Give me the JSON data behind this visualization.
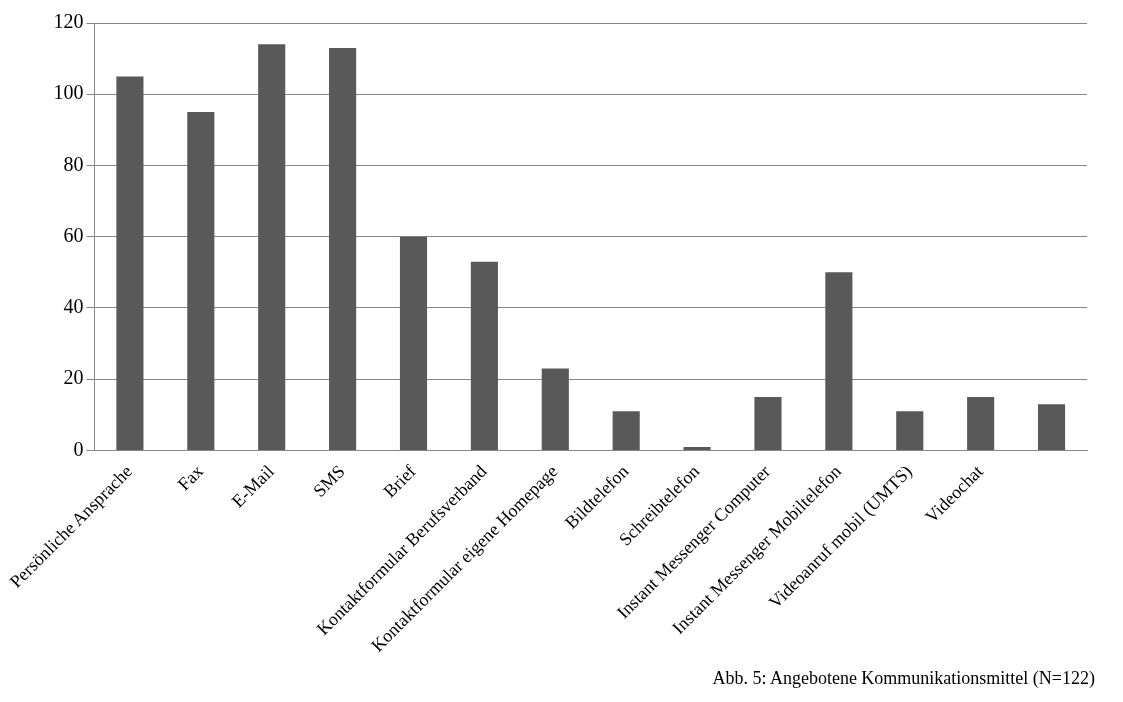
{
  "chart_data": {
    "type": "bar",
    "categories": [
      "Persönliche Ansprache",
      "Fax",
      "E-Mail",
      "SMS",
      "Brief",
      "Kontaktformular Berufsverband",
      "Kontaktformular eigene Homepage",
      "Bildtelefon",
      "Schreibtelefon",
      "Instant Messenger Computer",
      "Instant Messenger Mobiltelefon",
      "Videoanruf mobil (UMTS)",
      "Videochat",
      null
    ],
    "values": [
      105,
      95,
      114,
      113,
      60,
      53,
      23,
      11,
      1,
      15,
      50,
      11,
      15,
      13
    ],
    "color": "#595959",
    "ylim": [
      0,
      120
    ],
    "yticks": [
      0,
      20,
      40,
      60,
      80,
      100,
      120
    ],
    "grid": "y",
    "legend": false,
    "annotations": [
      "Abb. 5: Angebotene Kommunikationsmittel (N=122)"
    ]
  }
}
